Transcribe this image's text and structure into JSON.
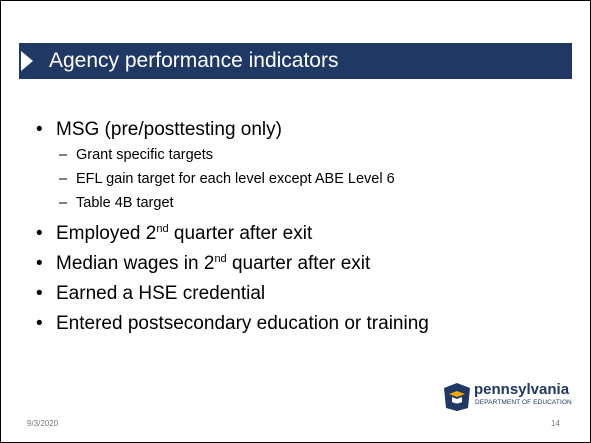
{
  "title": "Agency performance indicators",
  "bullets": [
    {
      "text": "MSG (pre/posttesting only)",
      "subitems": [
        "Grant specific targets",
        "EFL gain target for each level except ABE Level 6",
        "Table 4B target"
      ]
    },
    {
      "text": "Employed 2",
      "sup": "nd",
      "rest": " quarter after exit"
    },
    {
      "text": "Median wages in 2",
      "sup": "nd",
      "rest": " quarter after exit"
    },
    {
      "text": "Earned a HSE credential"
    },
    {
      "text": "Entered postsecondary education or training"
    }
  ],
  "footer": {
    "date": "9/3/2020",
    "page": "14"
  },
  "logo": {
    "name": "pennsylvania",
    "subtitle": "DEPARTMENT OF EDUCATION"
  }
}
